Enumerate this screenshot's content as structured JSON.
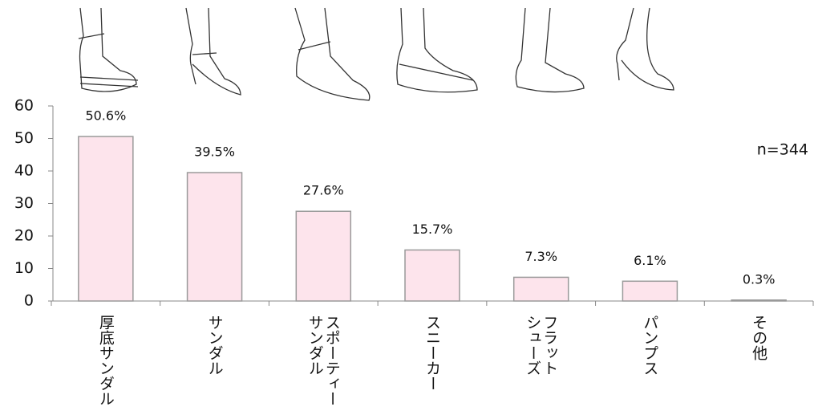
{
  "chart_data": {
    "type": "bar",
    "categories": [
      [
        "厚底サンダル"
      ],
      [
        "サンダル"
      ],
      [
        "スポーティー",
        "サンダル"
      ],
      [
        "スニーカー"
      ],
      [
        "フラット",
        "シューズ"
      ],
      [
        "パンプス"
      ],
      [
        "その他"
      ]
    ],
    "values": [
      50.6,
      39.5,
      27.6,
      15.7,
      7.3,
      6.1,
      0.3
    ],
    "value_labels": [
      "50.6%",
      "39.5%",
      "27.6%",
      "15.7%",
      "7.3%",
      "6.1%",
      "0.3%"
    ],
    "color": "#fde4ec",
    "edge_color": "#9a9a9a",
    "ylim": [
      0,
      60
    ],
    "yticks": [
      0,
      10,
      20,
      30,
      40,
      50,
      60
    ],
    "annotation": "n=344"
  }
}
